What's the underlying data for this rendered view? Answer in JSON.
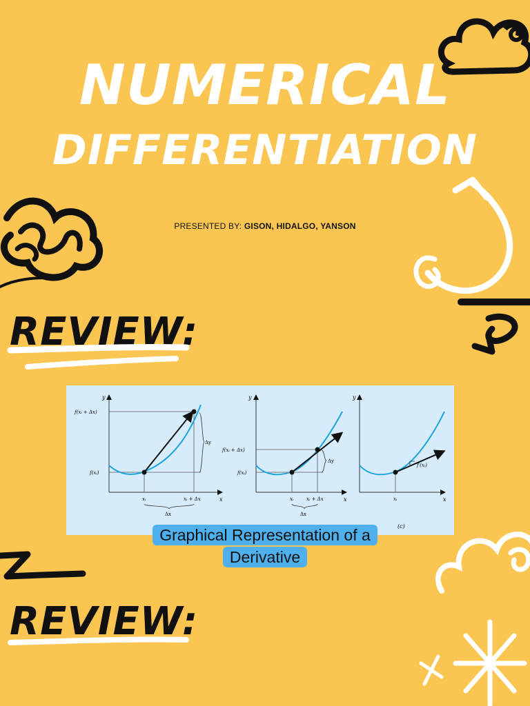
{
  "slide1": {
    "title_line1": "Numerical",
    "title_line2": "Differentiation",
    "presented_label": "PRESENTED BY:",
    "presenters": "GISON, HIDALGO, YANSON"
  },
  "slide2": {
    "heading": "REVIEW:",
    "caption": "Graphical Representation of a Derivative",
    "figure": {
      "panel1": {
        "y_axis": "y",
        "x_axis": "x",
        "label_top": "f(xᵢ + Δx)",
        "label_bottom": "f(xᵢ)",
        "delta_y": "Δy",
        "x1": "xᵢ",
        "x2": "xᵢ + Δx",
        "delta_x": "Δx"
      },
      "panel2": {
        "y_axis": "y",
        "x_axis": "x",
        "label_top": "f(xᵢ + Δx)",
        "label_bottom": "f(xᵢ)",
        "delta_y": "Δy",
        "x1": "xᵢ",
        "x2": "xᵢ + Δx",
        "delta_x": "Δx"
      },
      "panel3": {
        "y_axis": "y",
        "x_axis": "x",
        "tangent_label": "f′(xᵢ)",
        "x1": "xᵢ",
        "panel_tag": "(c)"
      }
    }
  },
  "slide3": {
    "heading": "REVIEW:"
  },
  "colors": {
    "background": "#fbc552",
    "figure_bg": "#d6ecfa",
    "caption_bg": "#4fb0ee",
    "curve": "#1aa3dd"
  }
}
